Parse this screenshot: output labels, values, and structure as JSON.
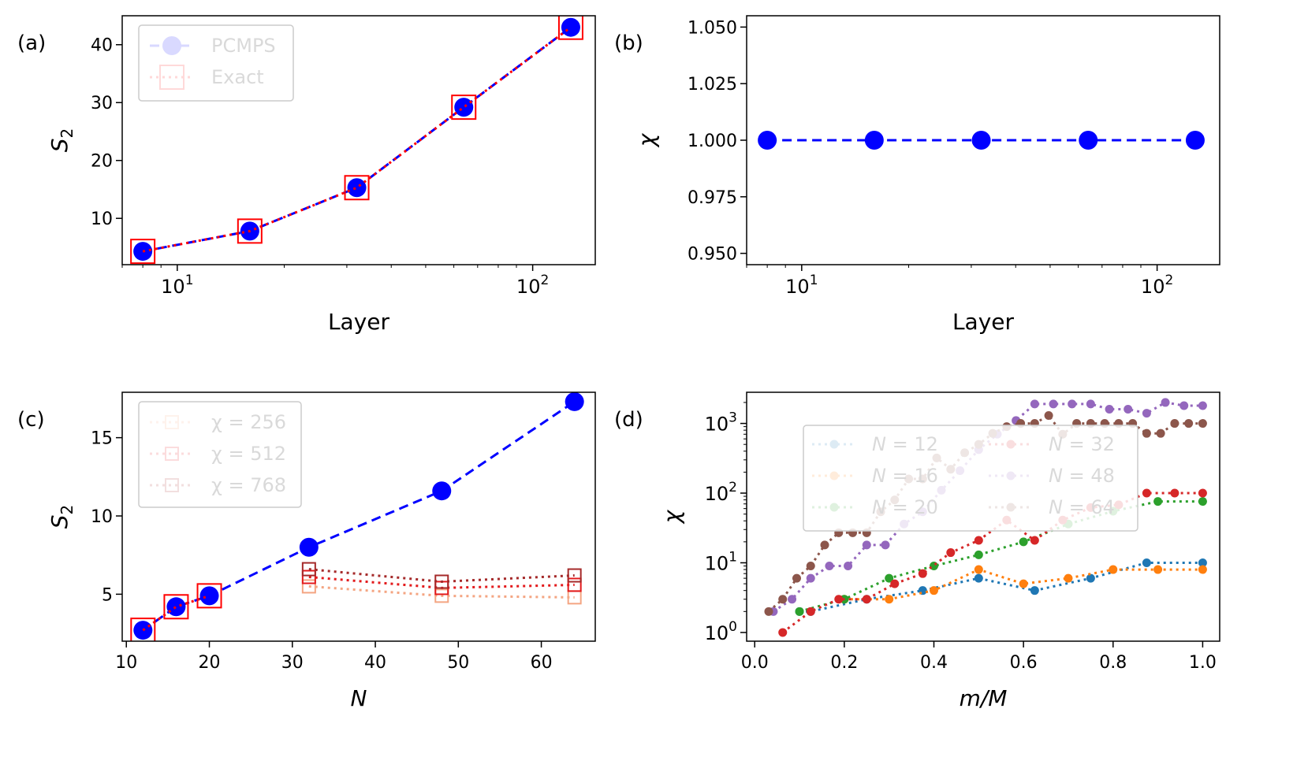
{
  "chart_data": [
    {
      "id": "a",
      "panel_label": "(a)",
      "type": "line",
      "xscale": "log",
      "xlim": [
        7,
        150
      ],
      "ylim": [
        2,
        45
      ],
      "xlabel": "Layer",
      "ylabel_main": "S",
      "ylabel_sub": "2",
      "xticks": [
        {
          "value": 10,
          "base": "10",
          "exp": "1"
        },
        {
          "value": 100,
          "base": "10",
          "exp": "2"
        }
      ],
      "xminor": [
        7,
        8,
        9,
        20,
        30,
        40,
        50,
        60,
        70,
        80,
        90
      ],
      "yticks": [
        {
          "value": 10,
          "label": "10"
        },
        {
          "value": 20,
          "label": "20"
        },
        {
          "value": 30,
          "label": "30"
        },
        {
          "value": 40,
          "label": "40"
        }
      ],
      "legend_position": "top-left",
      "series": [
        {
          "name": "PCMPS",
          "style": "dot",
          "color": "#0000ff",
          "dash": "dashed",
          "x": [
            8,
            16,
            32,
            64,
            128
          ],
          "y": [
            4.3,
            7.8,
            15.3,
            29.2,
            43.0
          ]
        },
        {
          "name": "Exact",
          "style": "square",
          "color": "#ff0000",
          "dash": "dotted",
          "x": [
            8,
            16,
            32,
            64,
            128
          ],
          "y": [
            4.3,
            7.8,
            15.3,
            29.2,
            43.0
          ]
        }
      ]
    },
    {
      "id": "b",
      "panel_label": "(b)",
      "type": "line",
      "xscale": "log",
      "xlim": [
        7,
        150
      ],
      "ylim": [
        0.945,
        1.055
      ],
      "xlabel": "Layer",
      "ylabel_main": "χ",
      "xticks": [
        {
          "value": 10,
          "base": "10",
          "exp": "1"
        },
        {
          "value": 100,
          "base": "10",
          "exp": "2"
        }
      ],
      "xminor": [
        7,
        8,
        9,
        20,
        30,
        40,
        50,
        60,
        70,
        80,
        90
      ],
      "yticks": [
        {
          "value": 0.95,
          "label": "0.950"
        },
        {
          "value": 0.975,
          "label": "0.975"
        },
        {
          "value": 1.0,
          "label": "1.000"
        },
        {
          "value": 1.025,
          "label": "1.025"
        },
        {
          "value": 1.05,
          "label": "1.050"
        }
      ],
      "series": [
        {
          "name": "",
          "style": "dot",
          "color": "#0000ff",
          "dash": "dashed",
          "x": [
            8,
            16,
            32,
            64,
            128
          ],
          "y": [
            1.0,
            1.0,
            1.0,
            1.0,
            1.0
          ]
        }
      ]
    },
    {
      "id": "c",
      "panel_label": "(c)",
      "type": "line",
      "xscale": "linear",
      "xlim": [
        9.5,
        66.5
      ],
      "ylim": [
        2.0,
        17.9
      ],
      "xlabel": "N",
      "ylabel_main": "S",
      "ylabel_sub": "2",
      "xticks": [
        {
          "value": 10,
          "label": "10"
        },
        {
          "value": 20,
          "label": "20"
        },
        {
          "value": 30,
          "label": "30"
        },
        {
          "value": 40,
          "label": "40"
        },
        {
          "value": 50,
          "label": "50"
        },
        {
          "value": 60,
          "label": "60"
        }
      ],
      "yticks": [
        {
          "value": 5,
          "label": "5"
        },
        {
          "value": 10,
          "label": "10"
        },
        {
          "value": 15,
          "label": "15"
        }
      ],
      "legend_position": "top-left",
      "series": [
        {
          "name": "PCMPS",
          "style": "dot",
          "color": "#0000ff",
          "dash": "dashed",
          "legend": false,
          "x": [
            12,
            16,
            20,
            32,
            48,
            64
          ],
          "y": [
            2.7,
            4.2,
            4.9,
            8.0,
            11.6,
            17.3
          ]
        },
        {
          "name": "Exact",
          "style": "square",
          "color": "#ff0000",
          "dash": "dotted",
          "legend": false,
          "x": [
            12,
            16,
            20
          ],
          "y": [
            2.7,
            4.2,
            4.9
          ]
        },
        {
          "name": "χ = 256",
          "style": "smallsquare",
          "color": "#f4a582",
          "dash": "dotted",
          "legend": true,
          "x": [
            32,
            48,
            64
          ],
          "y": [
            5.5,
            4.9,
            4.8
          ]
        },
        {
          "name": "χ = 512",
          "style": "smallsquare",
          "color": "#e31a1c",
          "dash": "dotted",
          "legend": true,
          "x": [
            32,
            48,
            64
          ],
          "y": [
            6.1,
            5.4,
            5.6
          ]
        },
        {
          "name": "χ = 768",
          "style": "smallsquare",
          "color": "#a52a2a",
          "dash": "dotted",
          "legend": true,
          "x": [
            32,
            48,
            64
          ],
          "y": [
            6.6,
            5.8,
            6.2
          ]
        }
      ]
    },
    {
      "id": "d",
      "panel_label": "(d)",
      "type": "line",
      "xscale": "linear",
      "yscale": "log",
      "xlim": [
        -0.018,
        1.038
      ],
      "ylim": [
        0.75,
        2800
      ],
      "xlabel": "m/M",
      "ylabel_main": "χ",
      "xticks": [
        {
          "value": 0.0,
          "label": "0.0"
        },
        {
          "value": 0.2,
          "label": "0.2"
        },
        {
          "value": 0.4,
          "label": "0.4"
        },
        {
          "value": 0.6,
          "label": "0.6"
        },
        {
          "value": 0.8,
          "label": "0.8"
        },
        {
          "value": 1.0,
          "label": "1.0"
        }
      ],
      "yticks": [
        {
          "value": 1,
          "base": "10",
          "exp": "0"
        },
        {
          "value": 10,
          "base": "10",
          "exp": "1"
        },
        {
          "value": 100,
          "base": "10",
          "exp": "2"
        },
        {
          "value": 1000,
          "base": "10",
          "exp": "3"
        }
      ],
      "legend_position": "top-left",
      "series": [
        {
          "name": "N = 12",
          "label_var": "N",
          "label_val": "12",
          "style": "smalldot",
          "color": "#1f77b4",
          "dash": "dotted",
          "x": [
            0.1,
            0.125,
            0.25,
            0.375,
            0.5,
            0.625,
            0.75,
            0.875,
            1.0
          ],
          "y": [
            2,
            2,
            3,
            4,
            6,
            4,
            6,
            10,
            10
          ]
        },
        {
          "name": "N = 16",
          "label_var": "N",
          "label_val": "16",
          "style": "smalldot",
          "color": "#ff7f0e",
          "dash": "dotted",
          "x": [
            0.2,
            0.3,
            0.4,
            0.5,
            0.6,
            0.7,
            0.8,
            0.9,
            1.0
          ],
          "y": [
            3,
            3,
            4,
            8,
            5,
            6,
            8,
            8,
            8
          ]
        },
        {
          "name": "N = 20",
          "label_var": "N",
          "label_val": "20",
          "style": "smalldot",
          "color": "#2ca02c",
          "dash": "dotted",
          "x": [
            0.1,
            0.2,
            0.3,
            0.4,
            0.5,
            0.6,
            0.7,
            0.8,
            0.9,
            1.0
          ],
          "y": [
            2,
            3,
            6,
            9,
            13,
            20,
            36,
            55,
            76,
            76
          ]
        },
        {
          "name": "N = 32",
          "label_var": "N",
          "label_val": "32",
          "style": "smalldot",
          "color": "#d62728",
          "dash": "dotted",
          "x": [
            0.0625,
            0.125,
            0.1875,
            0.25,
            0.3125,
            0.375,
            0.4375,
            0.5,
            0.5625,
            0.625,
            0.6875,
            0.75,
            0.8125,
            0.875,
            0.9375,
            1.0
          ],
          "y": [
            1,
            2,
            3,
            3,
            5,
            7,
            14,
            21,
            41,
            21,
            41,
            62,
            68,
            100,
            100,
            100
          ]
        },
        {
          "name": "N = 48",
          "label_var": "N",
          "label_val": "48",
          "style": "smalldot",
          "color": "#9467bd",
          "dash": "dotted",
          "x": [
            0.0417,
            0.0833,
            0.125,
            0.1667,
            0.2083,
            0.25,
            0.2917,
            0.3333,
            0.375,
            0.4167,
            0.4583,
            0.5,
            0.5417,
            0.5833,
            0.625,
            0.6667,
            0.7083,
            0.75,
            0.7917,
            0.8333,
            0.875,
            0.9167,
            0.9583,
            1.0
          ],
          "y": [
            2,
            3,
            6,
            9,
            9,
            18,
            18,
            36,
            54,
            110,
            210,
            420,
            700,
            1100,
            1900,
            1900,
            1900,
            1900,
            1600,
            1600,
            1400,
            2000,
            1800,
            1800
          ]
        },
        {
          "name": "N = 64",
          "label_var": "N",
          "label_val": "64",
          "style": "smalldot",
          "color": "#8c564b",
          "dash": "dotted",
          "x": [
            0.03125,
            0.0625,
            0.09375,
            0.125,
            0.15625,
            0.1875,
            0.21875,
            0.25,
            0.28125,
            0.3125,
            0.34375,
            0.375,
            0.40625,
            0.4375,
            0.46875,
            0.5,
            0.53125,
            0.5625,
            0.59375,
            0.625,
            0.65625,
            0.6875,
            0.71875,
            0.75,
            0.78125,
            0.8125,
            0.84375,
            0.875,
            0.90625,
            0.9375,
            0.96875,
            1.0
          ],
          "y": [
            2,
            3,
            6,
            9,
            18,
            27,
            27,
            27,
            54,
            80,
            160,
            160,
            320,
            220,
            380,
            500,
            720,
            900,
            1000,
            1000,
            1300,
            700,
            1000,
            1000,
            1000,
            1000,
            1000,
            720,
            720,
            1000,
            1000,
            1000
          ]
        }
      ]
    }
  ]
}
